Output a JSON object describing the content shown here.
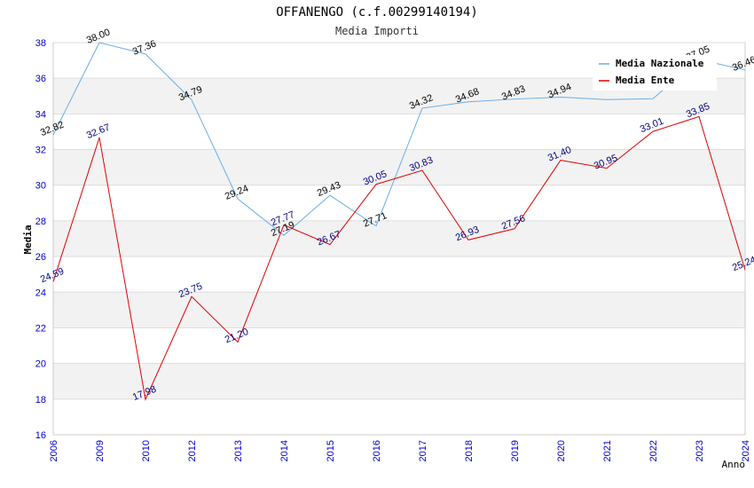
{
  "chart_data": {
    "type": "line",
    "title": "OFFANENGO (c.f.00299140194)",
    "subtitle": "Media Importi",
    "xlabel": "Anno",
    "ylabel": "Media",
    "ylim": [
      16,
      38
    ],
    "yticks": [
      16,
      18,
      20,
      22,
      24,
      26,
      28,
      30,
      32,
      34,
      36,
      38
    ],
    "categories": [
      "2006",
      "2009",
      "2010",
      "2012",
      "2013",
      "2014",
      "2015",
      "2016",
      "2017",
      "2018",
      "2019",
      "2020",
      "2021",
      "2022",
      "2023",
      "2024"
    ],
    "series": [
      {
        "name": "Media Nazionale",
        "color": "#6aaee6",
        "values": [
          32.82,
          38.0,
          37.36,
          34.79,
          29.24,
          27.19,
          29.43,
          27.71,
          34.32,
          34.68,
          34.83,
          34.94,
          34.8,
          34.85,
          37.05,
          36.46
        ],
        "labels": [
          "32.82",
          "38.00",
          "37.36",
          "34.79",
          "29.24",
          "27.19",
          "29.43",
          "27.71",
          "34.32",
          "34.68",
          "34.83",
          "34.94",
          "",
          "",
          "37.05",
          "36.46"
        ]
      },
      {
        "name": "Media Ente",
        "color": "#e00000",
        "values": [
          24.59,
          32.67,
          17.98,
          23.75,
          21.2,
          27.77,
          26.67,
          30.05,
          30.83,
          26.93,
          27.56,
          31.4,
          30.95,
          33.01,
          33.85,
          25.24
        ],
        "labels": [
          "24.59",
          "32.67",
          "17.98",
          "23.75",
          "21.20",
          "27.77",
          "26.67",
          "30.05",
          "30.83",
          "26.93",
          "27.56",
          "31.40",
          "30.95",
          "33.01",
          "33.85",
          "25.24"
        ]
      }
    ],
    "legend_position": "top-right"
  }
}
